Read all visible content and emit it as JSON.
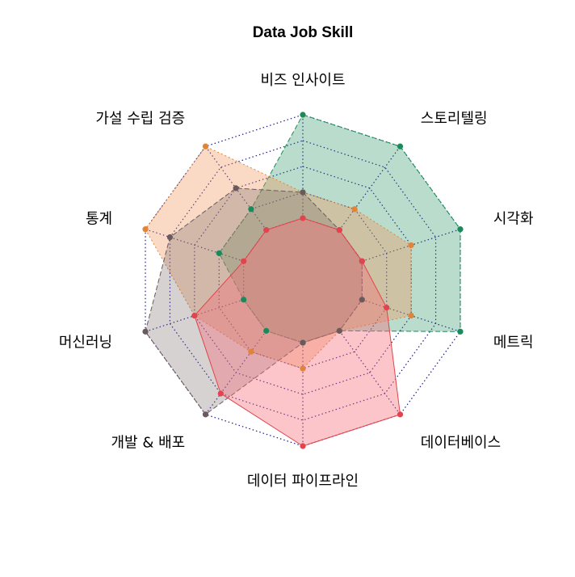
{
  "chart_data": {
    "type": "radar",
    "title": "Data Job Skill",
    "axes": [
      "비즈 인사이트",
      "스토리텔링",
      "시각화",
      "메트릭",
      "데이터베이스",
      "데이터 파이프라인",
      "개발 & 배포",
      "머신러닝",
      "통계",
      "가설 수립 검증"
    ],
    "range": [
      0,
      5
    ],
    "grid_levels": 5,
    "series": [
      {
        "color": "#1b8a5a",
        "fill": "rgba(27,138,90,0.30)",
        "line": "dashed",
        "values": [
          5,
          5,
          5,
          5,
          1,
          1,
          1,
          1,
          2,
          2
        ]
      },
      {
        "color": "#e0843a",
        "fill": "rgba(240,150,90,0.35)",
        "line": "dotted",
        "values": [
          2,
          2,
          3,
          3,
          1,
          2,
          2,
          3,
          5,
          5
        ]
      },
      {
        "color": "#6b5a5c",
        "fill": "rgba(120,105,105,0.30)",
        "line": "dashed",
        "values": [
          2,
          1,
          1,
          1,
          1,
          1,
          5,
          5,
          4,
          3
        ]
      },
      {
        "color": "#e2434d",
        "fill": "rgba(245,110,120,0.40)",
        "line": "solid",
        "values": [
          1,
          1,
          1,
          2,
          5,
          5,
          4,
          3,
          1,
          1
        ]
      }
    ]
  }
}
